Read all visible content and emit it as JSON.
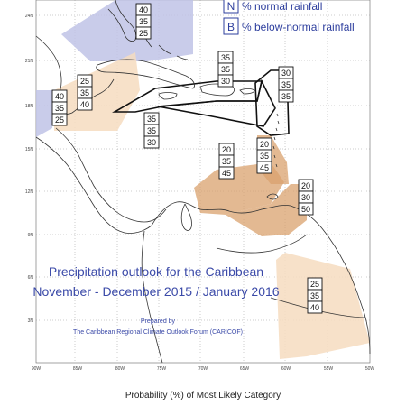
{
  "legend": {
    "items": [
      {
        "key": "N",
        "label": "% normal rainfall"
      },
      {
        "key": "B",
        "label": "% below-normal rainfall"
      }
    ]
  },
  "title": {
    "line1": "Precipitation outlook for the Caribbean",
    "line2": "November - December 2015 / January 2016"
  },
  "credit": {
    "line1": "Prepared by",
    "line2": "The Caribbean Regional Climate Outlook Forum (CARICOF)"
  },
  "caption": "Probability (%) of Most Likely Category",
  "axes": {
    "lat_labels": [
      "24N",
      "21N",
      "18N",
      "15N",
      "12N",
      "9N",
      "6N",
      "3N"
    ],
    "lon_labels": [
      "90W",
      "85W",
      "80W",
      "75W",
      "70W",
      "65W",
      "60W",
      "55W",
      "50W"
    ]
  },
  "colors": {
    "below_normal": "#bfc3e6",
    "normal_light": "#f6dcc0",
    "normal_dark": "#d9a26e",
    "zone_border": "#111111",
    "title_text": "#3b4aa8"
  },
  "forecast_boxes": [
    {
      "id": "gulf-bahamas",
      "values": [
        "40",
        "35",
        "25"
      ]
    },
    {
      "id": "yucatan-cayman",
      "values": [
        "25",
        "35",
        "40"
      ]
    },
    {
      "id": "central-america-north",
      "values": [
        "40",
        "35",
        "25"
      ]
    },
    {
      "id": "greater-antilles",
      "values": [
        "35",
        "35",
        "30"
      ]
    },
    {
      "id": "leeward-islands",
      "values": [
        "30",
        "35",
        "35"
      ]
    },
    {
      "id": "jamaica-south",
      "values": [
        "35",
        "35",
        "30"
      ]
    },
    {
      "id": "windward-islands",
      "values": [
        "20",
        "35",
        "45"
      ]
    },
    {
      "id": "eastern-caribbean-sea",
      "values": [
        "20",
        "35",
        "45"
      ]
    },
    {
      "id": "trinidad-venezuela",
      "values": [
        "20",
        "30",
        "50"
      ]
    },
    {
      "id": "guianas",
      "values": [
        "25",
        "35",
        "40"
      ]
    }
  ]
}
